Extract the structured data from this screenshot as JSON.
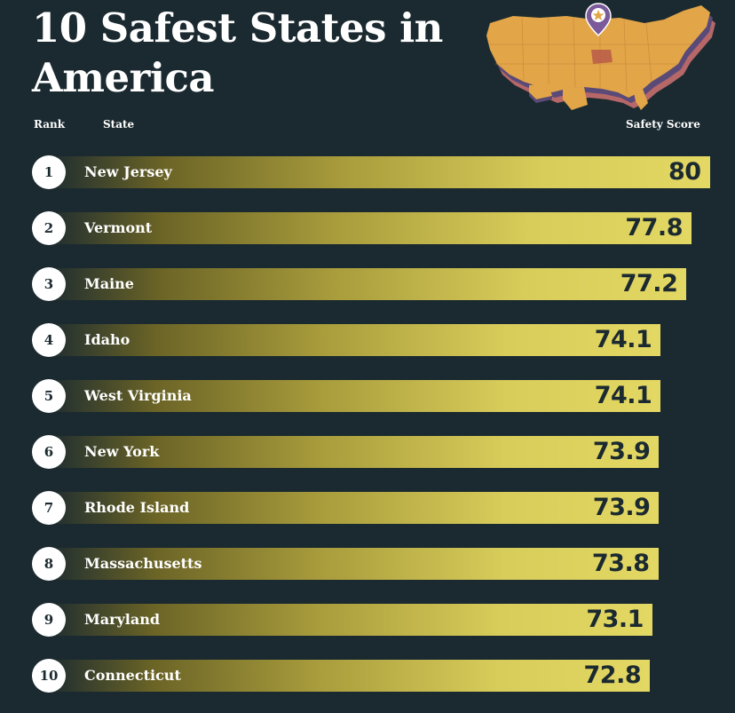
{
  "colors": {
    "background": "#1b2a30",
    "bar_end": "#e4d864",
    "text_light": "#ffffff",
    "text_dark": "#1b2a30"
  },
  "header": {
    "title": "10 Safest States in America",
    "rank_label": "Rank",
    "state_label": "State",
    "score_label": "Safety Score"
  },
  "decoration": {
    "map_icon": "usa-map-with-location-pin-icon"
  },
  "chart_data": {
    "type": "bar",
    "orientation": "horizontal",
    "title": "10 Safest States in America",
    "xlabel": "Safety Score",
    "ylabel": "State",
    "ranks": [
      "1",
      "2",
      "3",
      "4",
      "5",
      "6",
      "7",
      "8",
      "9",
      "10"
    ],
    "categories": [
      "New Jersey",
      "Vermont",
      "Maine",
      "Idaho",
      "West Virginia",
      "New York",
      "Rhode Island",
      "Massachusetts",
      "Maryland",
      "Connecticut"
    ],
    "values": [
      80,
      77.8,
      77.2,
      74.1,
      74.1,
      73.9,
      73.9,
      73.8,
      73.1,
      72.8
    ],
    "value_labels": [
      "80",
      "77.8",
      "77.2",
      "74.1",
      "74.1",
      "73.9",
      "73.9",
      "73.8",
      "73.1",
      "72.8"
    ]
  }
}
